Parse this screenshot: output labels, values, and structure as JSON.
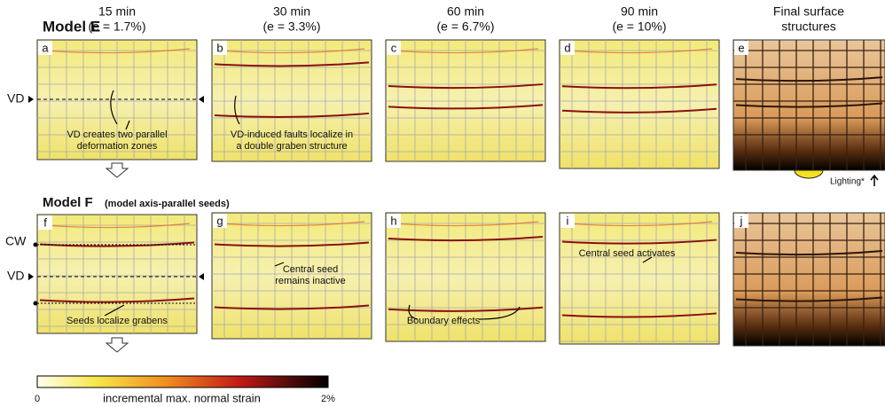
{
  "headers": [
    [
      "15 min",
      "(e = 1.7%)"
    ],
    [
      "30 min",
      "(e = 3.3%)"
    ],
    [
      "60 min",
      "(e = 6.7%)"
    ],
    [
      "90 min",
      "(e = 10%)"
    ],
    [
      "Final surface",
      "structures"
    ]
  ],
  "rows": [
    {
      "title": "Model E",
      "panels": [
        "a",
        "b",
        "c",
        "d",
        "e"
      ],
      "markers": [
        "VD"
      ]
    },
    {
      "title": "Model F",
      "subtitle": "(model axis-parallel seeds)",
      "panels": [
        "f",
        "g",
        "h",
        "i",
        "j"
      ],
      "markers": [
        "CW",
        "VD"
      ]
    }
  ],
  "annotations": [
    [
      "VD creates two parallel",
      "deformation zones"
    ],
    [
      "VD-induced faults localize in",
      "a double graben structure"
    ],
    [
      "Seeds localize grabens"
    ],
    [
      "Central seed",
      "remains inactive"
    ],
    [
      "Boundary effects"
    ],
    [
      "Central seed activates"
    ]
  ],
  "lighting": "Lighting*",
  "colorbar": {
    "min": "0",
    "label": "incremental max. normal strain",
    "max": "2%"
  }
}
